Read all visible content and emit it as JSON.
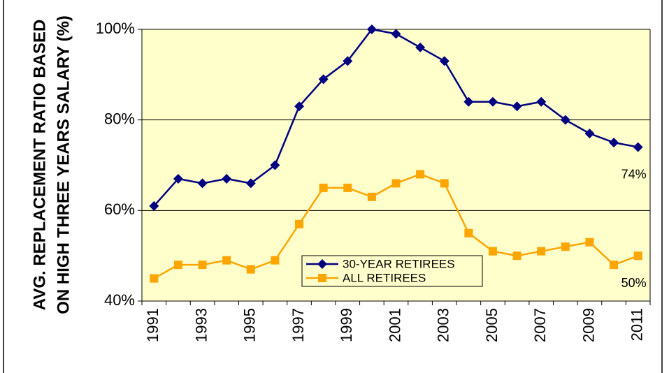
{
  "chart_data": {
    "type": "line",
    "y_label": [
      "AVG. REPLACEMENT RATIO BASED",
      "ON HIGH THREE YEARS SALARY (%)"
    ],
    "categories": [
      "1991",
      null,
      "1993",
      null,
      "1995",
      null,
      "1997",
      null,
      "1999",
      null,
      "2001",
      null,
      "2003",
      null,
      "2005",
      null,
      "2007",
      null,
      "2009",
      null,
      "2011"
    ],
    "series": [
      {
        "name": "30-YEAR RETIREES",
        "color": "#000080",
        "marker": "diamond",
        "values": [
          61,
          67,
          66,
          67,
          66,
          70,
          83,
          89,
          93,
          100,
          99,
          96,
          93,
          84,
          84,
          83,
          84,
          80,
          77,
          75,
          74
        ],
        "value_labels": [
          null,
          null,
          null,
          null,
          null,
          null,
          null,
          null,
          null,
          null,
          null,
          null,
          null,
          null,
          null,
          null,
          null,
          null,
          null,
          null,
          "74%"
        ]
      },
      {
        "name": "ALL RETIREES",
        "color": "#FFA500",
        "marker": "square",
        "values": [
          45,
          48,
          48,
          49,
          47,
          49,
          57,
          65,
          65,
          63,
          66,
          68,
          66,
          55,
          51,
          50,
          51,
          52,
          53,
          48,
          50
        ],
        "value_labels": [
          null,
          null,
          null,
          null,
          null,
          null,
          null,
          null,
          null,
          null,
          null,
          null,
          null,
          null,
          null,
          null,
          null,
          null,
          null,
          null,
          "50%"
        ]
      }
    ],
    "ylim": [
      40,
      100
    ],
    "yticks": [
      {
        "value": 40,
        "label": "40%"
      },
      {
        "value": 60,
        "label": "60%"
      },
      {
        "value": 80,
        "label": "80%"
      },
      {
        "value": 100,
        "label": "100%"
      }
    ],
    "grid": true,
    "background": "#FFFFCC"
  }
}
